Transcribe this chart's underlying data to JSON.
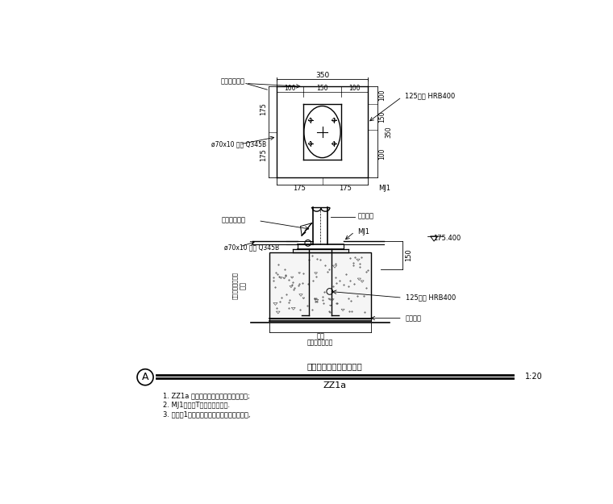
{
  "bg_color": "#ffffff",
  "line_color": "#000000",
  "title": "竖向桁架根部支座大样一",
  "subtitle": "ZZ1a",
  "scale": "1:20",
  "circle_label": "A",
  "notes": [
    "1. ZZ1a 适用于竖向桁架根部与混凝土柱;",
    "2. MJ1上部孔T板尺寸完全一致.",
    "3. 抹座部1层新旧砼支座布置图确定螺栓支板,"
  ],
  "top_dim_350": "350",
  "top_dim_100": "100",
  "top_dim_150": "150",
  "top_dim_100b": "100",
  "side_dim_175a": "175",
  "side_dim_175b": "175",
  "right_dim_100a": "100",
  "right_dim_150": "150",
  "right_dim_350": "350",
  "right_dim_100b": "100",
  "bot_dim_175a": "175",
  "bot_dim_175b": "175",
  "label_top_left": "竖向桁架垫料",
  "label_right": "125钢筋 HRB400",
  "label_left": "ø70x10 钢板 Q345B",
  "label_mj1_top": "MJ1",
  "label_mj1_side": "MJ1",
  "label_175400": "175.400",
  "label_150": "150",
  "label_125hrb": "125钢筋 HRB400",
  "label_guan": "管托底座",
  "label_col_vert": "柱截",
  "label_detail": "详混凝土结构图纸",
  "label_base": "垫层",
  "label_concrete": "混凝土结构图纸",
  "label_anchor": "锚固螺栓",
  "label_left2": "ø70x10 钢板 Q345B",
  "label_topleft2": "竖向桁架垫料"
}
